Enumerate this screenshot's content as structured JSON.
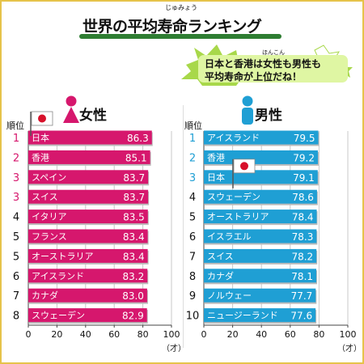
{
  "title": "世界の平均寿命ランキング",
  "title_ruby": "じゅみょう",
  "note": {
    "line1": "日本と香港は女性も男性も",
    "line2": "平均寿命が上位だね！",
    "ruby": "ほんこん"
  },
  "colors": {
    "female": "#d6176d",
    "male": "#1f9fd4",
    "accent_bg": "#dff6a3",
    "star_bg": "#a8d84a",
    "border": "#e6c34a",
    "japan_flag_red": "#d7102a"
  },
  "icons": {
    "female": "female-symbol-icon",
    "male": "male-symbol-icon",
    "flag": "japan-flag-icon",
    "star": "star-icon"
  },
  "chart_data": [
    {
      "type": "bar",
      "title": "女性",
      "rank_header": "順位",
      "orientation": "horizontal",
      "xlim": [
        0,
        100
      ],
      "x_ticks": [
        0,
        20,
        40,
        60,
        80,
        100
      ],
      "x_unit": "（才）",
      "ranks": [
        "1",
        "2",
        "3",
        "3",
        "4",
        "5",
        "5",
        "6",
        "7",
        "8"
      ],
      "categories": [
        "日本",
        "香港",
        "スペイン",
        "スイス",
        "イタリア",
        "フランス",
        "オーストラリア",
        "アイスランド",
        "カナダ",
        "スウェーデン"
      ],
      "values": [
        86.3,
        85.1,
        83.7,
        83.7,
        83.5,
        83.4,
        83.4,
        83.2,
        83.0,
        82.9
      ],
      "value_labels": [
        "86.3",
        "85.1",
        "83.7",
        "83.7",
        "83.5",
        "83.4",
        "83.4",
        "83.2",
        "83.0",
        "82.9"
      ],
      "highlight_ranks": [
        0,
        1,
        2,
        3
      ],
      "flag_index": 0
    },
    {
      "type": "bar",
      "title": "男性",
      "rank_header": "順位",
      "orientation": "horizontal",
      "xlim": [
        0,
        100
      ],
      "x_ticks": [
        0,
        20,
        40,
        60,
        80,
        100
      ],
      "x_unit": "（才）",
      "ranks": [
        "1",
        "2",
        "3",
        "4",
        "5",
        "6",
        "7",
        "8",
        "9",
        "10"
      ],
      "categories": [
        "アイスランド",
        "香港",
        "日本",
        "スウェーデン",
        "オーストラリア",
        "イスラエル",
        "スイス",
        "カナダ",
        "ノルウェー",
        "ニュージーランド"
      ],
      "values": [
        79.5,
        79.2,
        79.1,
        78.6,
        78.4,
        78.3,
        78.2,
        78.1,
        77.7,
        77.6
      ],
      "value_labels": [
        "79.5",
        "79.2",
        "79.1",
        "78.6",
        "78.4",
        "78.3",
        "78.2",
        "78.1",
        "77.7",
        "77.6"
      ],
      "highlight_ranks": [
        0,
        1,
        2
      ],
      "flag_index": 2
    }
  ]
}
